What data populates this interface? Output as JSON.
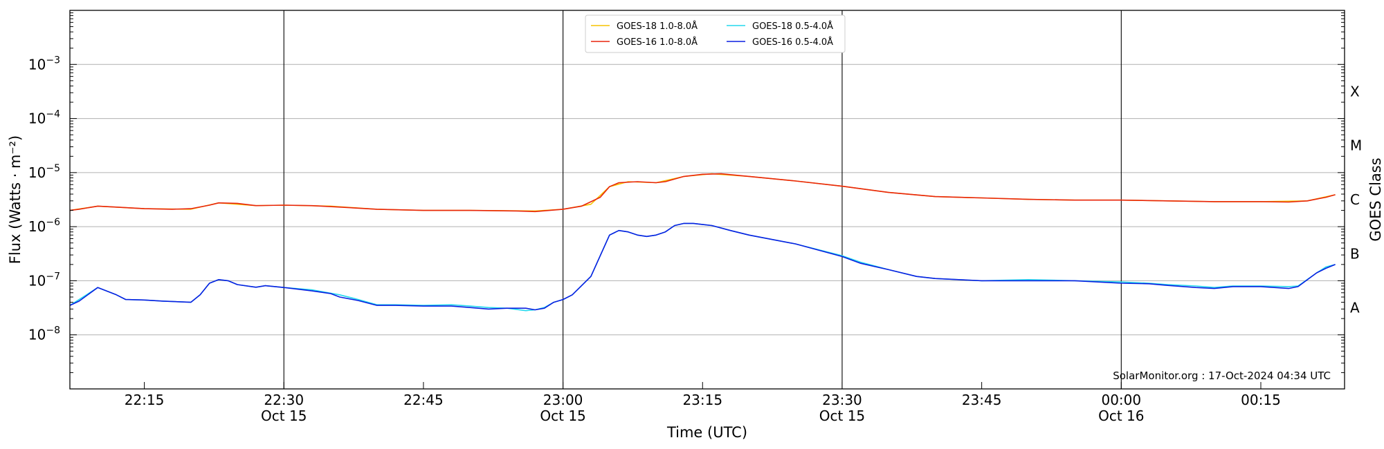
{
  "chart_data": {
    "type": "line",
    "y_scale": "log",
    "ylim": [
      1e-09,
      0.01
    ],
    "xlim": [
      "22:07",
      "00:24"
    ],
    "xlabel": "Time (UTC)",
    "ylabel": "Flux (Watts · m⁻²)",
    "y2label": "GOES Class",
    "grid": "horizontal at each decade",
    "legend_position": "top-center",
    "y_ticks": [
      {
        "exp": -8,
        "label": "10",
        "sup": "−8"
      },
      {
        "exp": -7,
        "label": "10",
        "sup": "−7"
      },
      {
        "exp": -6,
        "label": "10",
        "sup": "−6"
      },
      {
        "exp": -5,
        "label": "10",
        "sup": "−5"
      },
      {
        "exp": -4,
        "label": "10",
        "sup": "−4"
      },
      {
        "exp": -3,
        "label": "10",
        "sup": "−3"
      }
    ],
    "goes_classes": [
      {
        "label": "A",
        "exp": -7.5
      },
      {
        "label": "B",
        "exp": -6.5
      },
      {
        "label": "C",
        "exp": -5.5
      },
      {
        "label": "M",
        "exp": -4.5
      },
      {
        "label": "X",
        "exp": -3.5
      }
    ],
    "x_ticks": [
      {
        "time": "22:15",
        "label": "22:15",
        "date": ""
      },
      {
        "time": "22:30",
        "label": "22:30",
        "date": "Oct 15"
      },
      {
        "time": "22:45",
        "label": "22:45",
        "date": ""
      },
      {
        "time": "23:00",
        "label": "23:00",
        "date": "Oct 15"
      },
      {
        "time": "23:15",
        "label": "23:15",
        "date": ""
      },
      {
        "time": "23:30",
        "label": "23:30",
        "date": "Oct 15"
      },
      {
        "time": "23:45",
        "label": "23:45",
        "date": ""
      },
      {
        "time": "00:00",
        "label": "00:00",
        "date": "Oct 16"
      },
      {
        "time": "00:15",
        "label": "00:15",
        "date": ""
      }
    ],
    "vlines": [
      "22:30",
      "23:00",
      "23:30",
      "00:00"
    ],
    "series": [
      {
        "name": "GOES-18 1.0-8.0Å",
        "color": "#f5c400",
        "points": [
          [
            "22:07",
            2e-06
          ],
          [
            "22:10",
            2.4e-06
          ],
          [
            "22:15",
            2.15e-06
          ],
          [
            "22:20",
            2.1e-06
          ],
          [
            "22:23",
            2.75e-06
          ],
          [
            "22:27",
            2.45e-06
          ],
          [
            "22:30",
            2.5e-06
          ],
          [
            "22:35",
            2.4e-06
          ],
          [
            "22:40",
            2.1e-06
          ],
          [
            "22:45",
            2e-06
          ],
          [
            "22:50",
            2e-06
          ],
          [
            "22:57",
            1.95e-06
          ],
          [
            "23:00",
            2.1e-06
          ],
          [
            "23:03",
            2.6e-06
          ],
          [
            "23:05",
            5.5e-06
          ],
          [
            "23:07",
            6.8e-06
          ],
          [
            "23:10",
            6.5e-06
          ],
          [
            "23:13",
            8.5e-06
          ],
          [
            "23:16",
            9.5e-06
          ],
          [
            "23:20",
            8.5e-06
          ],
          [
            "23:25",
            7e-06
          ],
          [
            "23:30",
            5.6e-06
          ],
          [
            "23:35",
            4.3e-06
          ],
          [
            "23:40",
            3.6e-06
          ],
          [
            "23:45",
            3.4e-06
          ],
          [
            "23:50",
            3.2e-06
          ],
          [
            "23:55",
            3.1e-06
          ],
          [
            "00:00",
            3.1e-06
          ],
          [
            "00:05",
            3e-06
          ],
          [
            "00:10",
            2.9e-06
          ],
          [
            "00:15",
            2.9e-06
          ],
          [
            "00:20",
            3e-06
          ],
          [
            "00:23",
            3.9e-06
          ]
        ]
      },
      {
        "name": "GOES-16 1.0-8.0Å",
        "color": "#e8240c",
        "points": [
          [
            "22:07",
            2e-06
          ],
          [
            "22:08",
            2.1e-06
          ],
          [
            "22:10",
            2.4e-06
          ],
          [
            "22:12",
            2.3e-06
          ],
          [
            "22:15",
            2.15e-06
          ],
          [
            "22:18",
            2.1e-06
          ],
          [
            "22:20",
            2.15e-06
          ],
          [
            "22:22",
            2.5e-06
          ],
          [
            "22:23",
            2.75e-06
          ],
          [
            "22:25",
            2.7e-06
          ],
          [
            "22:27",
            2.45e-06
          ],
          [
            "22:30",
            2.5e-06
          ],
          [
            "22:33",
            2.45e-06
          ],
          [
            "22:36",
            2.3e-06
          ],
          [
            "22:40",
            2.1e-06
          ],
          [
            "22:45",
            2e-06
          ],
          [
            "22:50",
            2e-06
          ],
          [
            "22:55",
            1.95e-06
          ],
          [
            "22:57",
            1.9e-06
          ],
          [
            "23:00",
            2.1e-06
          ],
          [
            "23:02",
            2.4e-06
          ],
          [
            "23:04",
            3.5e-06
          ],
          [
            "23:05",
            5.5e-06
          ],
          [
            "23:06",
            6.5e-06
          ],
          [
            "23:08",
            6.8e-06
          ],
          [
            "23:10",
            6.5e-06
          ],
          [
            "23:11",
            6.8e-06
          ],
          [
            "23:13",
            8.5e-06
          ],
          [
            "23:15",
            9.3e-06
          ],
          [
            "23:17",
            9.5e-06
          ],
          [
            "23:20",
            8.5e-06
          ],
          [
            "23:25",
            7e-06
          ],
          [
            "23:30",
            5.6e-06
          ],
          [
            "23:35",
            4.3e-06
          ],
          [
            "23:40",
            3.6e-06
          ],
          [
            "23:45",
            3.4e-06
          ],
          [
            "23:50",
            3.2e-06
          ],
          [
            "23:55",
            3.1e-06
          ],
          [
            "00:00",
            3.1e-06
          ],
          [
            "00:05",
            3e-06
          ],
          [
            "00:10",
            2.9e-06
          ],
          [
            "00:15",
            2.9e-06
          ],
          [
            "00:18",
            2.85e-06
          ],
          [
            "00:20",
            3e-06
          ],
          [
            "00:22",
            3.5e-06
          ],
          [
            "00:23",
            3.9e-06
          ]
        ]
      },
      {
        "name": "GOES-18 0.5-4.0Å",
        "color": "#22d8ee",
        "points": [
          [
            "22:07",
            3.5e-08
          ],
          [
            "22:08",
            4.5e-08
          ],
          [
            "22:10",
            7.5e-08
          ],
          [
            "22:12",
            5.5e-08
          ],
          [
            "22:13",
            4.5e-08
          ],
          [
            "22:15",
            4.4e-08
          ],
          [
            "22:17",
            4.2e-08
          ],
          [
            "22:20",
            4e-08
          ],
          [
            "22:21",
            5.5e-08
          ],
          [
            "22:22",
            9e-08
          ],
          [
            "22:23",
            1.05e-07
          ],
          [
            "22:24",
            1e-07
          ],
          [
            "22:25",
            8.5e-08
          ],
          [
            "22:27",
            7.6e-08
          ],
          [
            "22:28",
            8.1e-08
          ],
          [
            "22:30",
            7.5e-08
          ],
          [
            "22:33",
            6.8e-08
          ],
          [
            "22:36",
            5.5e-08
          ],
          [
            "22:38",
            4.5e-08
          ],
          [
            "22:40",
            3.6e-08
          ],
          [
            "22:42",
            3.6e-08
          ],
          [
            "22:45",
            3.5e-08
          ],
          [
            "22:48",
            3.6e-08
          ],
          [
            "22:50",
            3.4e-08
          ],
          [
            "22:52",
            3.2e-08
          ],
          [
            "22:54",
            3.1e-08
          ],
          [
            "22:56",
            2.8e-08
          ],
          [
            "22:57",
            2.9e-08
          ],
          [
            "22:58",
            3.2e-08
          ],
          [
            "22:59",
            4e-08
          ],
          [
            "23:00",
            4.5e-08
          ],
          [
            "23:01",
            5.5e-08
          ],
          [
            "23:03",
            1.2e-07
          ],
          [
            "23:05",
            7e-07
          ],
          [
            "23:06",
            8.5e-07
          ],
          [
            "23:07",
            8e-07
          ],
          [
            "23:08",
            7e-07
          ],
          [
            "23:09",
            6.6e-07
          ],
          [
            "23:10",
            7e-07
          ],
          [
            "23:11",
            8e-07
          ],
          [
            "23:12",
            1.05e-06
          ],
          [
            "23:13",
            1.15e-06
          ],
          [
            "23:14",
            1.15e-06
          ],
          [
            "23:16",
            1.05e-06
          ],
          [
            "23:18",
            8.5e-07
          ],
          [
            "23:20",
            7e-07
          ],
          [
            "23:25",
            4.8e-07
          ],
          [
            "23:30",
            2.9e-07
          ],
          [
            "23:32",
            2.2e-07
          ],
          [
            "23:35",
            1.6e-07
          ],
          [
            "23:38",
            1.2e-07
          ],
          [
            "23:40",
            1.1e-07
          ],
          [
            "23:45",
            1e-07
          ],
          [
            "23:50",
            1.05e-07
          ],
          [
            "23:55",
            1e-07
          ],
          [
            "00:00",
            9.5e-08
          ],
          [
            "00:03",
            9e-08
          ],
          [
            "00:05",
            8.5e-08
          ],
          [
            "00:08",
            8e-08
          ],
          [
            "00:10",
            7.5e-08
          ],
          [
            "00:12",
            8e-08
          ],
          [
            "00:15",
            8e-08
          ],
          [
            "00:18",
            7.8e-08
          ],
          [
            "00:19",
            8e-08
          ],
          [
            "00:21",
            1.4e-07
          ],
          [
            "00:22",
            1.8e-07
          ],
          [
            "00:23",
            2e-07
          ]
        ]
      },
      {
        "name": "GOES-16 0.5-4.0Å",
        "color": "#0a1ee0",
        "points": [
          [
            "22:07",
            3.5e-08
          ],
          [
            "22:08",
            4.2e-08
          ],
          [
            "22:10",
            7.5e-08
          ],
          [
            "22:12",
            5.5e-08
          ],
          [
            "22:13",
            4.5e-08
          ],
          [
            "22:15",
            4.4e-08
          ],
          [
            "22:17",
            4.2e-08
          ],
          [
            "22:20",
            4e-08
          ],
          [
            "22:21",
            5.5e-08
          ],
          [
            "22:22",
            9e-08
          ],
          [
            "22:23",
            1.05e-07
          ],
          [
            "22:24",
            1e-07
          ],
          [
            "22:25",
            8.5e-08
          ],
          [
            "22:27",
            7.6e-08
          ],
          [
            "22:28",
            8.1e-08
          ],
          [
            "22:30",
            7.5e-08
          ],
          [
            "22:33",
            6.5e-08
          ],
          [
            "22:35",
            5.8e-08
          ],
          [
            "22:36",
            5e-08
          ],
          [
            "22:38",
            4.3e-08
          ],
          [
            "22:40",
            3.5e-08
          ],
          [
            "22:42",
            3.5e-08
          ],
          [
            "22:45",
            3.4e-08
          ],
          [
            "22:48",
            3.4e-08
          ],
          [
            "22:50",
            3.2e-08
          ],
          [
            "22:52",
            3e-08
          ],
          [
            "22:54",
            3.1e-08
          ],
          [
            "22:56",
            3.1e-08
          ],
          [
            "22:57",
            2.9e-08
          ],
          [
            "22:58",
            3.1e-08
          ],
          [
            "22:59",
            4e-08
          ],
          [
            "23:00",
            4.5e-08
          ],
          [
            "23:01",
            5.5e-08
          ],
          [
            "23:03",
            1.2e-07
          ],
          [
            "23:05",
            7e-07
          ],
          [
            "23:06",
            8.5e-07
          ],
          [
            "23:07",
            8e-07
          ],
          [
            "23:08",
            7e-07
          ],
          [
            "23:09",
            6.6e-07
          ],
          [
            "23:10",
            7e-07
          ],
          [
            "23:11",
            8e-07
          ],
          [
            "23:12",
            1.05e-06
          ],
          [
            "23:13",
            1.15e-06
          ],
          [
            "23:14",
            1.15e-06
          ],
          [
            "23:16",
            1.05e-06
          ],
          [
            "23:18",
            8.5e-07
          ],
          [
            "23:20",
            7e-07
          ],
          [
            "23:25",
            4.8e-07
          ],
          [
            "23:30",
            2.8e-07
          ],
          [
            "23:32",
            2.1e-07
          ],
          [
            "23:35",
            1.6e-07
          ],
          [
            "23:38",
            1.2e-07
          ],
          [
            "23:40",
            1.1e-07
          ],
          [
            "23:45",
            1e-07
          ],
          [
            "23:50",
            1e-07
          ],
          [
            "23:55",
            1e-07
          ],
          [
            "00:00",
            9e-08
          ],
          [
            "00:03",
            8.8e-08
          ],
          [
            "00:05",
            8.2e-08
          ],
          [
            "00:08",
            7.5e-08
          ],
          [
            "00:10",
            7.2e-08
          ],
          [
            "00:12",
            7.8e-08
          ],
          [
            "00:15",
            7.8e-08
          ],
          [
            "00:18",
            7.2e-08
          ],
          [
            "00:19",
            7.8e-08
          ],
          [
            "00:21",
            1.4e-07
          ],
          [
            "00:22",
            1.7e-07
          ],
          [
            "00:23",
            2e-07
          ]
        ]
      }
    ],
    "legend": [
      {
        "label": "GOES-18 1.0-8.0Å",
        "color": "#f5c400"
      },
      {
        "label": "GOES-18 0.5-4.0Å",
        "color": "#22d8ee"
      },
      {
        "label": "GOES-16 1.0-8.0Å",
        "color": "#e8240c"
      },
      {
        "label": "GOES-16 0.5-4.0Å",
        "color": "#0a1ee0"
      }
    ],
    "credit": "SolarMonitor.org : 17-Oct-2024 04:34 UTC"
  }
}
